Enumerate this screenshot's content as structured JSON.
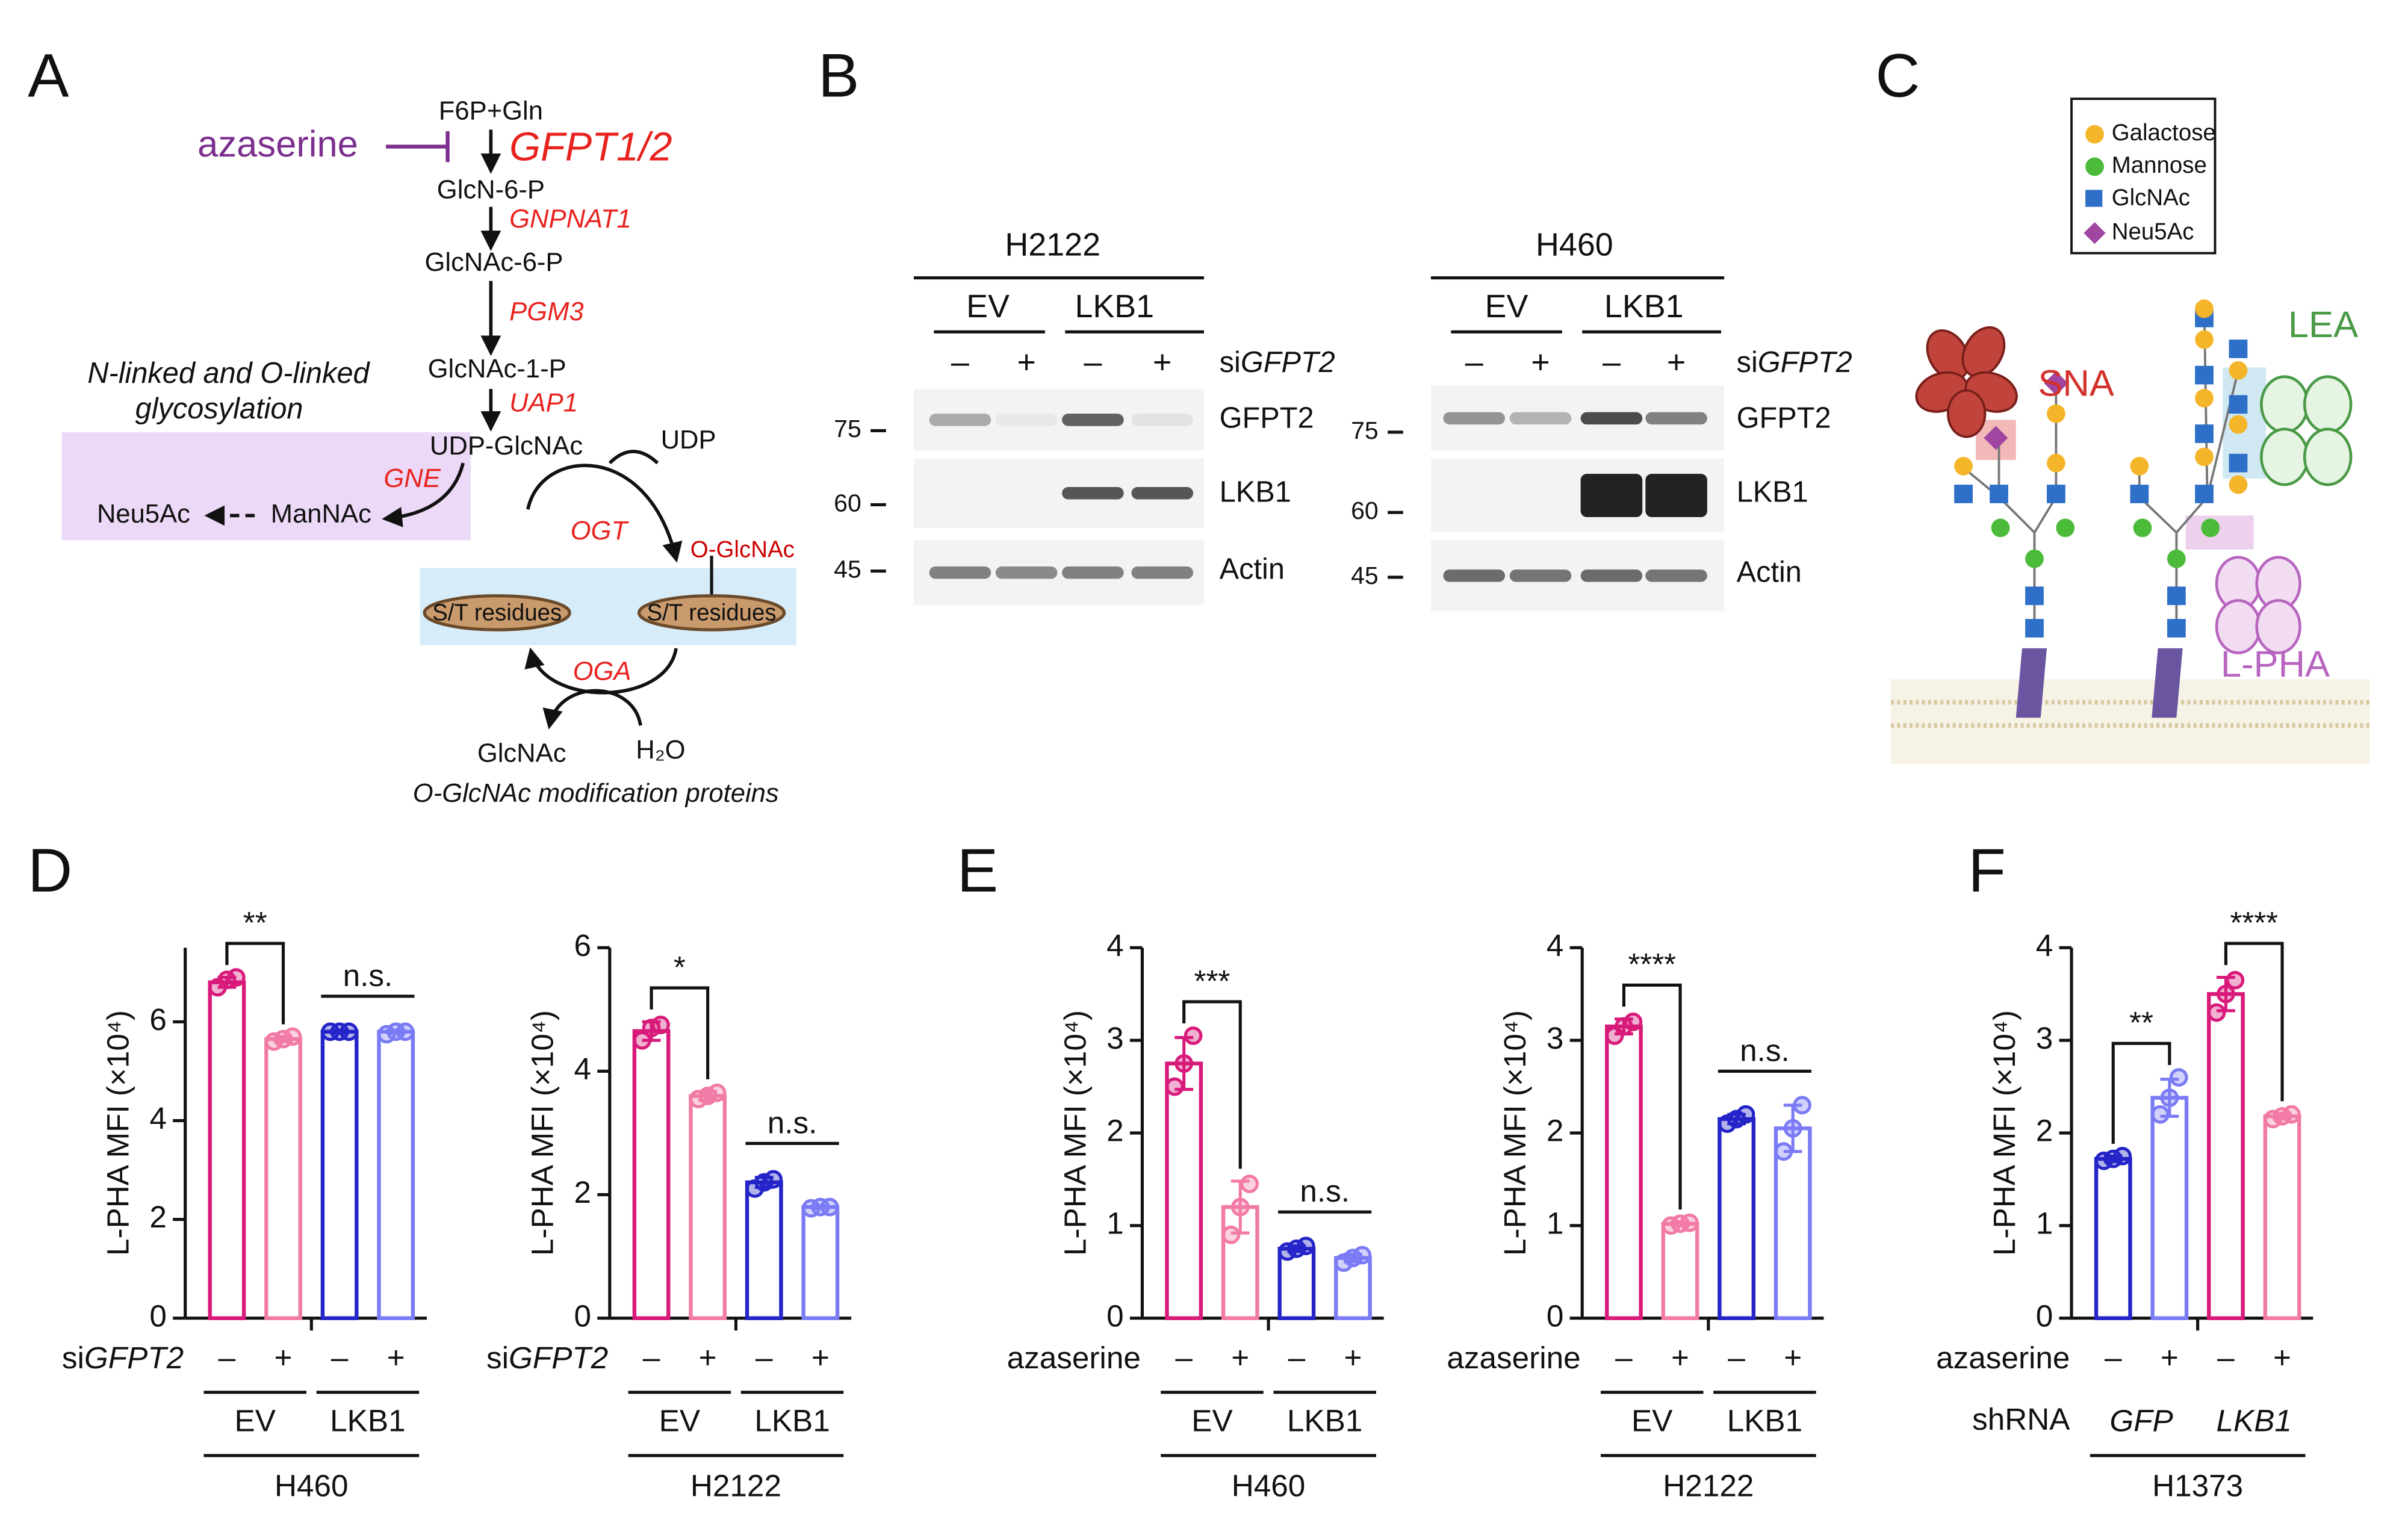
{
  "panel_labels": [
    "A",
    "B",
    "C",
    "D",
    "E",
    "F"
  ],
  "pathway": {
    "inhibitor": "azaserine",
    "metabolites": [
      "F6P+Gln",
      "GlcN-6-P",
      "GlcNAc-6-P",
      "GlcNAc-1-P",
      "UDP-GlcNAc"
    ],
    "enzymes": [
      "GFPT1/2",
      "GNPNAT1",
      "PGM3",
      "UAP1"
    ],
    "branch_title": [
      "N-linked and O-linked",
      "glycosylation"
    ],
    "branch_enzyme": "GNE",
    "branch_products": [
      "Neu5Ac",
      "ManNAc"
    ],
    "byproduct": "UDP",
    "transferase": "OGT",
    "modification": "O-GlcNAc",
    "substrate": "S/T residues",
    "hydrolase": "OGA",
    "hydrolysis_products": [
      "GlcNAc",
      "H₂O"
    ],
    "caption": "O-GlcNAc modification proteins"
  },
  "blots": [
    {
      "cell_line": "H2122",
      "groups": [
        "EV",
        "LKB1"
      ],
      "treatment_label": [
        "si",
        "GFPT2"
      ],
      "signs": [
        "–",
        "+",
        "–",
        "+"
      ],
      "markers": [
        75,
        60,
        45
      ],
      "proteins": [
        "GFPT2",
        "LKB1",
        "Actin"
      ]
    },
    {
      "cell_line": "H460",
      "groups": [
        "EV",
        "LKB1"
      ],
      "treatment_label": [
        "si",
        "GFPT2"
      ],
      "signs": [
        "–",
        "+",
        "–",
        "+"
      ],
      "markers": [
        75,
        60,
        45
      ],
      "proteins": [
        "GFPT2",
        "LKB1",
        "Actin"
      ]
    }
  ],
  "glycan": {
    "legend": [
      "Galactose",
      "Mannose",
      "GlcNAc",
      "Neu5Ac"
    ],
    "lectins": [
      "SNA",
      "LEA",
      "L-PHA"
    ]
  },
  "chart_data": [
    {
      "type": "bar",
      "y_label": "L-PHA MFI (×10⁴)",
      "ylim": [
        0,
        7.5
      ],
      "yticks": [
        0,
        2,
        4,
        6
      ],
      "categories": [
        "–",
        "+",
        "–",
        "+"
      ],
      "values": [
        6.8,
        5.65,
        5.8,
        5.8
      ],
      "errors": [
        0.1,
        0.05,
        0.03,
        0.03
      ],
      "points": [
        [
          6.7,
          6.85,
          6.9
        ],
        [
          5.6,
          5.65,
          5.7
        ],
        [
          5.8,
          5.8,
          5.8
        ],
        [
          5.75,
          5.8,
          5.8
        ]
      ],
      "colors": [
        "#d81b7a",
        "#f27ba6",
        "#2424c8",
        "#7b7bf5"
      ],
      "treatment_label": [
        "si",
        "GFPT2"
      ],
      "groups": [
        "EV",
        "LKB1"
      ],
      "cell_line": "H460",
      "significance": [
        {
          "label": "**",
          "bars": [
            0,
            1
          ],
          "legs": true
        },
        {
          "label": "n.s.",
          "bars": [
            2,
            3
          ],
          "legs": false
        }
      ]
    },
    {
      "type": "bar",
      "y_label": "L-PHA MFI (×10⁴)",
      "ylim": [
        0,
        6
      ],
      "yticks": [
        0,
        2,
        4,
        6
      ],
      "categories": [
        "–",
        "+",
        "–",
        "+"
      ],
      "values": [
        4.65,
        3.6,
        2.2,
        1.8
      ],
      "errors": [
        0.15,
        0.07,
        0.08,
        0.02
      ],
      "points": [
        [
          4.5,
          4.7,
          4.75
        ],
        [
          3.55,
          3.6,
          3.65
        ],
        [
          2.1,
          2.2,
          2.25
        ],
        [
          1.78,
          1.8,
          1.8
        ]
      ],
      "colors": [
        "#d81b7a",
        "#f27ba6",
        "#2424c8",
        "#7b7bf5"
      ],
      "treatment_label": [
        "si",
        "GFPT2"
      ],
      "groups": [
        "EV",
        "LKB1"
      ],
      "cell_line": "H2122",
      "significance": [
        {
          "label": "*",
          "bars": [
            0,
            1
          ],
          "legs": true
        },
        {
          "label": "n.s.",
          "bars": [
            2,
            3
          ],
          "legs": false
        }
      ]
    },
    {
      "type": "bar",
      "y_label": "L-PHA MFI (×10⁴)",
      "ylim": [
        0,
        4
      ],
      "yticks": [
        0,
        1,
        2,
        3,
        4
      ],
      "categories": [
        "–",
        "+",
        "–",
        "+"
      ],
      "values": [
        2.75,
        1.2,
        0.75,
        0.65
      ],
      "errors": [
        0.28,
        0.28,
        0.03,
        0.04
      ],
      "points": [
        [
          2.5,
          2.75,
          3.05
        ],
        [
          0.9,
          1.2,
          1.45
        ],
        [
          0.72,
          0.75,
          0.78
        ],
        [
          0.6,
          0.65,
          0.68
        ]
      ],
      "colors": [
        "#d81b7a",
        "#f27ba6",
        "#2424c8",
        "#7b7bf5"
      ],
      "treatment_label": [
        "azaserine"
      ],
      "groups": [
        "EV",
        "LKB1"
      ],
      "cell_line": "H460",
      "significance": [
        {
          "label": "***",
          "bars": [
            0,
            1
          ],
          "legs": true
        },
        {
          "label": "n.s.",
          "bars": [
            2,
            3
          ],
          "legs": false
        }
      ]
    },
    {
      "type": "bar",
      "y_label": "L-PHA MFI (×10⁴)",
      "ylim": [
        0,
        4
      ],
      "yticks": [
        0,
        1,
        2,
        3,
        4
      ],
      "categories": [
        "–",
        "+",
        "–",
        "+"
      ],
      "values": [
        3.15,
        1.02,
        2.15,
        2.05
      ],
      "errors": [
        0.08,
        0.02,
        0.05,
        0.25
      ],
      "points": [
        [
          3.05,
          3.15,
          3.2
        ],
        [
          1.0,
          1.02,
          1.03
        ],
        [
          2.1,
          2.15,
          2.2
        ],
        [
          1.8,
          2.05,
          2.3
        ]
      ],
      "colors": [
        "#d81b7a",
        "#f27ba6",
        "#2424c8",
        "#7b7bf5"
      ],
      "treatment_label": [
        "azaserine"
      ],
      "groups": [
        "EV",
        "LKB1"
      ],
      "cell_line": "H2122",
      "significance": [
        {
          "label": "****",
          "bars": [
            0,
            1
          ],
          "legs": true
        },
        {
          "label": "n.s.",
          "bars": [
            2,
            3
          ],
          "legs": false
        }
      ]
    },
    {
      "type": "bar",
      "y_label": "L-PHA MFI (×10⁴)",
      "ylim": [
        0,
        4
      ],
      "yticks": [
        0,
        1,
        2,
        3,
        4
      ],
      "categories": [
        "–",
        "+",
        "–",
        "+"
      ],
      "values": [
        1.72,
        2.38,
        3.5,
        2.18
      ],
      "errors": [
        0.03,
        0.2,
        0.18,
        0.03
      ],
      "points": [
        [
          1.7,
          1.72,
          1.75
        ],
        [
          2.2,
          2.38,
          2.6
        ],
        [
          3.3,
          3.5,
          3.65
        ],
        [
          2.15,
          2.18,
          2.2
        ]
      ],
      "colors": [
        "#2424c8",
        "#7b7bf5",
        "#d81b7a",
        "#f27ba6"
      ],
      "treatment_label": [
        "azaserine"
      ],
      "group_label": "shRNA",
      "groups": [
        "GFP",
        "LKB1"
      ],
      "cell_line": "H1373",
      "significance": [
        {
          "label": "**",
          "bars": [
            0,
            1
          ],
          "legs": true
        },
        {
          "label": "****",
          "bars": [
            2,
            3
          ],
          "legs": true
        }
      ]
    }
  ]
}
